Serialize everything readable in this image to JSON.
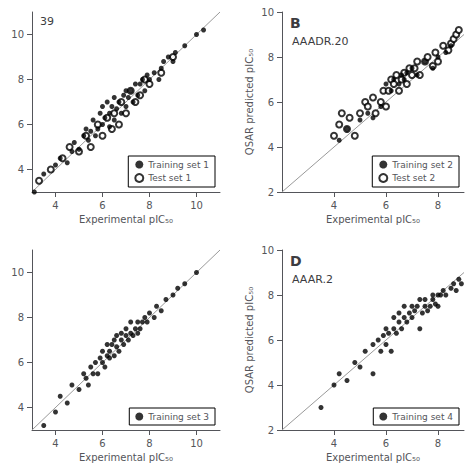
{
  "chart_data": [
    {
      "type": "scatter",
      "subtitle": "39",
      "xlabel": "Experimental pIC₅₀",
      "xlim": [
        3,
        11
      ],
      "ylim": [
        3,
        11
      ],
      "xticks": [
        4,
        6,
        8,
        10
      ],
      "yticks": [
        4,
        6,
        8,
        10
      ],
      "legend": "lower right",
      "series": [
        {
          "type": "line",
          "color": "#999999",
          "x": [
            3,
            11
          ],
          "y": [
            3,
            11
          ]
        },
        {
          "name": "Training set 1",
          "type": "scatter",
          "marker": "circle",
          "color": "#000000",
          "x": [
            3.1,
            3.5,
            4.0,
            4.2,
            4.5,
            4.7,
            4.8,
            5.0,
            5.2,
            5.3,
            5.4,
            5.5,
            5.6,
            5.7,
            5.8,
            5.9,
            6.0,
            6.0,
            6.1,
            6.2,
            6.3,
            6.3,
            6.4,
            6.5,
            6.5,
            6.6,
            6.7,
            6.8,
            6.9,
            7.0,
            7.0,
            7.1,
            7.2,
            7.3,
            7.4,
            7.5,
            7.6,
            7.7,
            7.8,
            7.9,
            8.0,
            8.2,
            8.4,
            8.5,
            8.6,
            8.8,
            9.0,
            9.1,
            9.5,
            10.0,
            10.3
          ],
          "y": [
            3.0,
            3.8,
            4.2,
            4.5,
            4.3,
            4.8,
            5.2,
            4.9,
            5.5,
            5.8,
            5.3,
            5.7,
            6.2,
            5.5,
            5.8,
            6.5,
            6.0,
            6.8,
            6.3,
            7.0,
            5.9,
            6.5,
            6.8,
            6.2,
            7.2,
            6.7,
            7.0,
            6.5,
            7.3,
            7.5,
            6.8,
            7.2,
            7.5,
            7.0,
            7.8,
            7.3,
            7.8,
            8.0,
            7.5,
            8.2,
            8.0,
            8.3,
            8.0,
            8.5,
            8.8,
            9.0,
            8.8,
            9.2,
            9.5,
            10.0,
            10.2
          ]
        },
        {
          "name": "Test set 1",
          "type": "scatter",
          "marker": "circle_open",
          "color": "#000000",
          "x": [
            3.3,
            3.8,
            4.3,
            4.6,
            5.0,
            5.3,
            5.5,
            5.8,
            6.0,
            6.2,
            6.4,
            6.5,
            6.7,
            6.8,
            7.0,
            7.2,
            7.4,
            7.6,
            7.8,
            8.0,
            8.5,
            9.0
          ],
          "y": [
            3.5,
            4.0,
            4.5,
            5.0,
            4.8,
            5.5,
            5.0,
            6.0,
            5.5,
            6.3,
            5.8,
            6.5,
            6.0,
            7.0,
            6.5,
            7.5,
            7.0,
            7.3,
            8.0,
            7.8,
            8.3,
            9.0
          ]
        }
      ]
    },
    {
      "type": "scatter",
      "title": "B",
      "subtitle": "AAADR.20",
      "xlabel": "Experimental pIC₅₀",
      "ylabel": "QSAR predicted pIC₅₀",
      "xlim": [
        2,
        9
      ],
      "ylim": [
        2,
        10
      ],
      "xticks": [
        4,
        6,
        8
      ],
      "yticks": [
        2,
        4,
        6,
        8,
        10
      ],
      "legend": "lower right",
      "series": [
        {
          "type": "line",
          "color": "#999999",
          "x": [
            2,
            9
          ],
          "y": [
            2,
            9
          ]
        },
        {
          "name": "Training set 2",
          "type": "scatter",
          "marker": "circle",
          "color": "#000000",
          "x": [
            4.2,
            4.5,
            5.0,
            5.3,
            5.5,
            5.8,
            6.0,
            6.2,
            6.3,
            6.5,
            6.6,
            6.7,
            6.8,
            7.0,
            7.2,
            7.5,
            7.8,
            8.0,
            8.3,
            8.5
          ],
          "y": [
            4.3,
            4.8,
            5.2,
            5.5,
            5.3,
            5.8,
            6.8,
            6.5,
            7.0,
            6.8,
            7.2,
            7.0,
            7.3,
            7.5,
            7.2,
            7.8,
            7.5,
            8.0,
            8.2,
            8.5
          ]
        },
        {
          "name": "Test set 2",
          "type": "scatter",
          "marker": "circle_open",
          "color": "#000000",
          "x": [
            4.0,
            4.2,
            4.3,
            4.5,
            4.6,
            4.8,
            5.0,
            5.2,
            5.3,
            5.5,
            5.6,
            5.8,
            5.9,
            6.0,
            6.1,
            6.2,
            6.3,
            6.4,
            6.5,
            6.6,
            6.7,
            6.8,
            6.9,
            7.0,
            7.1,
            7.2,
            7.3,
            7.5,
            7.6,
            7.8,
            7.9,
            8.0,
            8.2,
            8.4,
            8.5,
            8.6,
            8.7,
            8.8
          ],
          "y": [
            4.5,
            5.0,
            5.5,
            4.8,
            5.3,
            4.5,
            5.5,
            6.0,
            5.8,
            6.2,
            5.5,
            6.0,
            6.5,
            5.8,
            6.5,
            7.0,
            6.8,
            7.2,
            6.5,
            7.0,
            7.3,
            6.8,
            7.5,
            7.2,
            7.5,
            7.8,
            7.2,
            7.8,
            8.0,
            7.6,
            8.2,
            7.8,
            8.5,
            8.3,
            8.6,
            8.8,
            9.0,
            9.2
          ]
        }
      ]
    },
    {
      "type": "scatter",
      "xlabel": "Experimental pIC₅₀",
      "xlim": [
        3,
        11
      ],
      "ylim": [
        3,
        11
      ],
      "xticks": [
        4,
        6,
        8,
        10
      ],
      "yticks": [
        4,
        6,
        8,
        10
      ],
      "legend": "lower right",
      "series": [
        {
          "type": "line",
          "color": "#999999",
          "x": [
            3,
            11
          ],
          "y": [
            3,
            11
          ]
        },
        {
          "name": "Training set 3",
          "type": "scatter",
          "marker": "circle",
          "color": "#000000",
          "x": [
            3.5,
            4.0,
            4.2,
            4.5,
            4.7,
            5.0,
            5.2,
            5.3,
            5.4,
            5.5,
            5.6,
            5.7,
            5.8,
            5.9,
            6.0,
            6.0,
            6.1,
            6.2,
            6.2,
            6.3,
            6.3,
            6.4,
            6.5,
            6.5,
            6.6,
            6.6,
            6.7,
            6.8,
            6.8,
            6.9,
            7.0,
            7.0,
            7.1,
            7.2,
            7.2,
            7.3,
            7.4,
            7.5,
            7.5,
            7.6,
            7.7,
            7.8,
            7.9,
            8.0,
            8.2,
            8.3,
            8.5,
            8.7,
            9.0,
            9.2,
            9.5,
            10.0
          ],
          "y": [
            3.2,
            3.8,
            4.5,
            4.2,
            5.0,
            4.8,
            5.5,
            5.3,
            5.0,
            5.8,
            5.5,
            6.0,
            5.5,
            6.2,
            6.0,
            6.5,
            5.8,
            6.3,
            6.8,
            6.2,
            6.5,
            6.8,
            6.3,
            7.0,
            6.7,
            7.2,
            6.5,
            7.0,
            7.3,
            6.8,
            7.2,
            7.5,
            7.0,
            7.3,
            7.8,
            7.2,
            7.5,
            7.3,
            7.8,
            7.5,
            7.8,
            8.0,
            7.8,
            8.2,
            8.0,
            8.5,
            8.3,
            8.8,
            9.0,
            9.3,
            9.5,
            10.0
          ]
        }
      ]
    },
    {
      "type": "scatter",
      "title": "D",
      "subtitle": "AAAR.2",
      "xlabel": "Experimental pIC₅₀",
      "ylabel": "QSAR predicted pIC₅₀",
      "xlim": [
        2,
        9
      ],
      "ylim": [
        2,
        10
      ],
      "xticks": [
        4,
        6,
        8
      ],
      "yticks": [
        2,
        4,
        6,
        8,
        10
      ],
      "legend": "lower right",
      "series": [
        {
          "type": "line",
          "color": "#999999",
          "x": [
            2,
            9
          ],
          "y": [
            2,
            9
          ]
        },
        {
          "name": "Training set 4",
          "type": "scatter",
          "marker": "circle",
          "color": "#000000",
          "x": [
            3.5,
            4.0,
            4.2,
            4.5,
            4.8,
            5.0,
            5.2,
            5.5,
            5.5,
            5.7,
            5.8,
            5.9,
            6.0,
            6.0,
            6.1,
            6.2,
            6.3,
            6.3,
            6.4,
            6.5,
            6.5,
            6.6,
            6.7,
            6.7,
            6.8,
            6.9,
            7.0,
            7.0,
            7.1,
            7.2,
            7.3,
            7.3,
            7.4,
            7.5,
            7.5,
            7.6,
            7.7,
            7.8,
            7.8,
            7.9,
            8.0,
            8.0,
            8.1,
            8.2,
            8.3,
            8.5,
            8.6,
            8.7,
            8.8,
            8.9
          ],
          "y": [
            3.0,
            4.0,
            4.5,
            4.2,
            5.0,
            4.8,
            5.5,
            4.5,
            5.8,
            6.0,
            5.5,
            6.2,
            5.8,
            6.5,
            6.3,
            5.5,
            6.5,
            7.0,
            6.3,
            6.8,
            7.2,
            6.5,
            7.0,
            7.5,
            6.8,
            7.2,
            7.0,
            7.5,
            7.3,
            7.5,
            7.8,
            6.5,
            7.2,
            7.5,
            7.8,
            7.3,
            7.5,
            7.8,
            8.0,
            7.6,
            8.0,
            7.5,
            8.0,
            8.2,
            8.0,
            8.3,
            8.5,
            8.2,
            8.7,
            8.5
          ]
        }
      ]
    }
  ]
}
